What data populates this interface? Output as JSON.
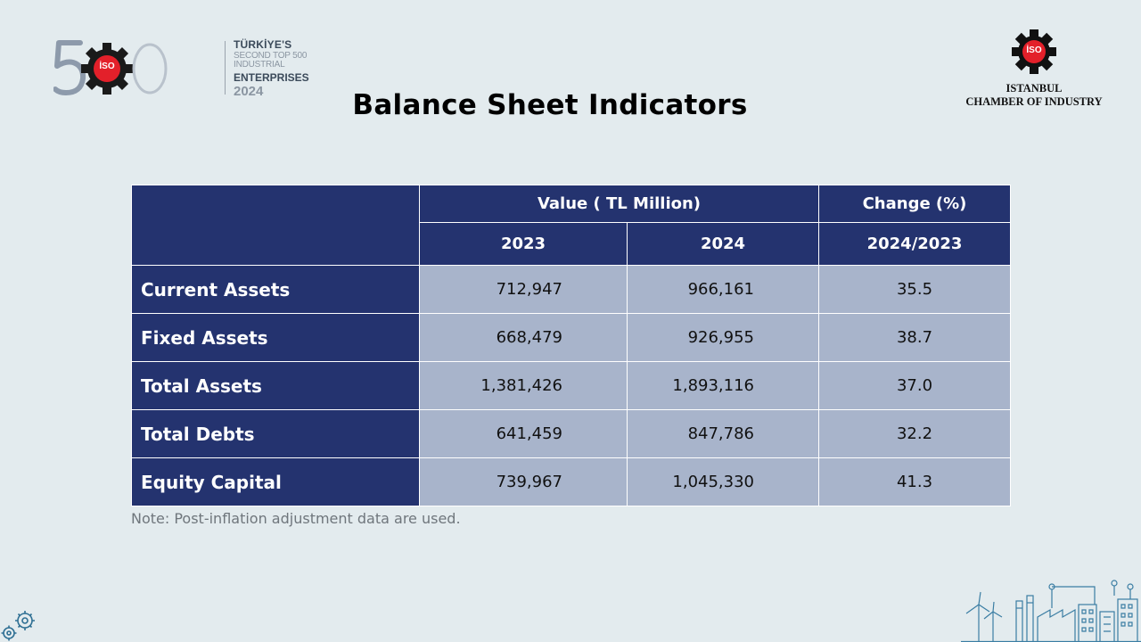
{
  "logo500": {
    "digits": "500",
    "badge": "İSO",
    "line1": "TÜRKİYE'S",
    "line2": "SECOND TOP 500 INDUSTRIAL",
    "line3": "ENTERPRISES",
    "line4": "2024"
  },
  "iso_logo": {
    "badge": "İSO",
    "name_line1": "ISTANBUL",
    "name_line2": "CHAMBER OF INDUSTRY"
  },
  "title": "Balance Sheet Indicators",
  "table": {
    "header": {
      "value_group": "Value ( TL Million)",
      "change_group": "Change (%)",
      "year1": "2023",
      "year2": "2024",
      "change_period": "2024/2023"
    },
    "rows": [
      {
        "label": "Current Assets",
        "v2023": "712,947",
        "v2024": "966,161",
        "change": "35.5"
      },
      {
        "label": "Fixed Assets",
        "v2023": "668,479",
        "v2024": "926,955",
        "change": "38.7"
      },
      {
        "label": "Total Assets",
        "v2023": "1,381,426",
        "v2024": "1,893,116",
        "change": "37.0"
      },
      {
        "label": "Total Debts",
        "v2023": "641,459",
        "v2024": "847,786",
        "change": "32.2"
      },
      {
        "label": "Equity Capital",
        "v2023": "739,967",
        "v2024": "1,045,330",
        "change": "41.3"
      }
    ]
  },
  "note": "Note: Post-inflation adjustment data are used.",
  "colors": {
    "background": "#e3ebee",
    "header_navy": "#24336f",
    "cell_blue_gray": "#a8b4cb",
    "iso_red": "#e3202a"
  },
  "icons": {
    "top_left": "iso-500-logo",
    "top_right": "iso-gear-logo",
    "bottom_left": "gears-icon",
    "bottom_right": "factory-skyline-icon"
  }
}
